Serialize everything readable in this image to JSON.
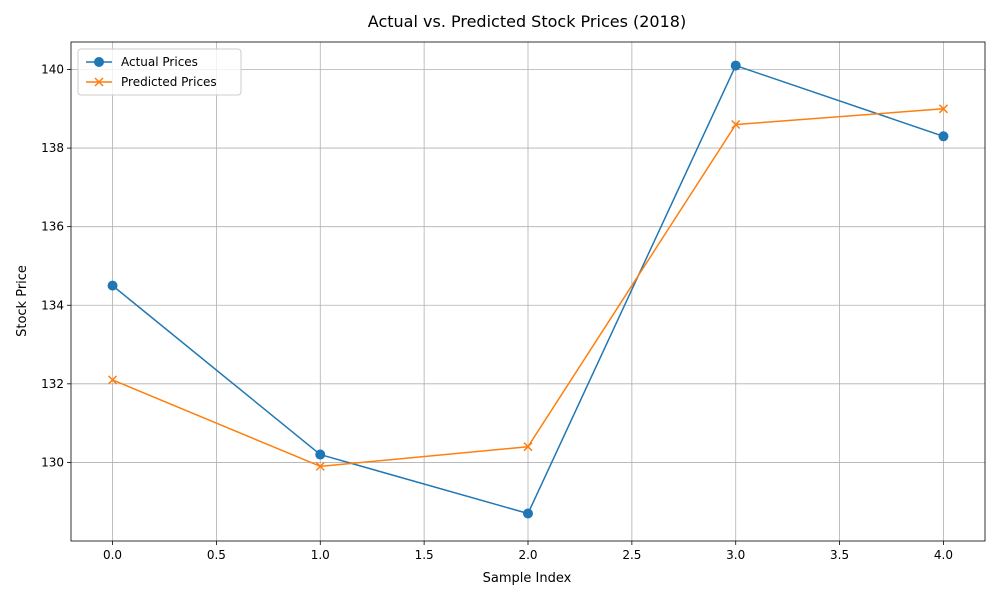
{
  "chart_data": {
    "type": "line",
    "title": "Actual vs. Predicted Stock Prices (2018)",
    "xlabel": "Sample Index",
    "ylabel": "Stock Price",
    "x": [
      0,
      1,
      2,
      3,
      4
    ],
    "xlim": [
      -0.2,
      4.2
    ],
    "ylim": [
      128.0,
      140.7
    ],
    "xticks": [
      0.0,
      0.5,
      1.0,
      1.5,
      2.0,
      2.5,
      3.0,
      3.5,
      4.0
    ],
    "xtick_labels": [
      "0.0",
      "0.5",
      "1.0",
      "1.5",
      "2.0",
      "2.5",
      "3.0",
      "3.5",
      "4.0"
    ],
    "yticks": [
      130,
      132,
      134,
      136,
      138,
      140
    ],
    "ytick_labels": [
      "130",
      "132",
      "134",
      "136",
      "138",
      "140"
    ],
    "grid": true,
    "legend_position": "top-left",
    "series": [
      {
        "name": "Actual Prices",
        "marker": "circle",
        "color": "#1f77b4",
        "values": [
          134.5,
          130.2,
          128.7,
          140.1,
          138.3
        ]
      },
      {
        "name": "Predicted Prices",
        "marker": "x",
        "color": "#ff7f0e",
        "values": [
          132.1,
          129.9,
          130.4,
          138.6,
          139.0
        ]
      }
    ]
  }
}
